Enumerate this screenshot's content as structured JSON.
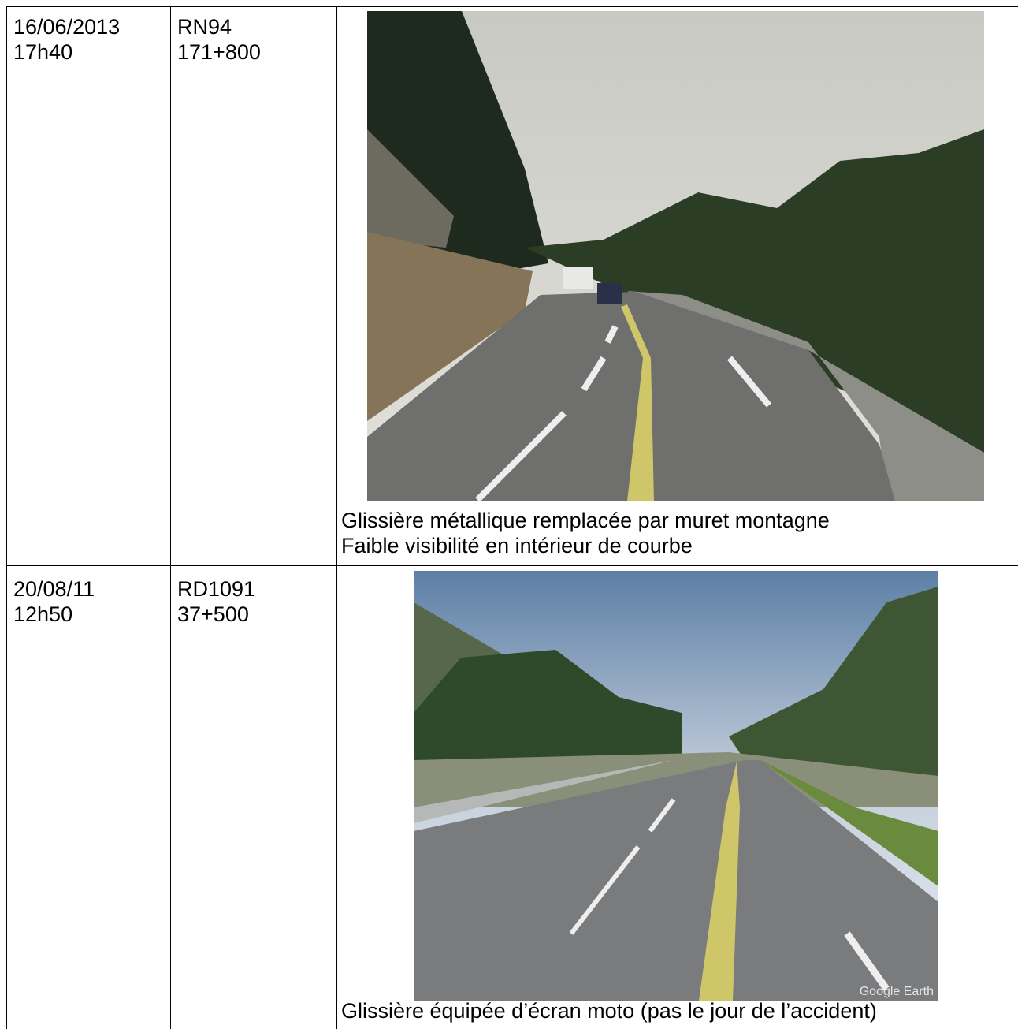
{
  "table": {
    "rows": [
      {
        "date": "16/06/2013",
        "time": "17h40",
        "road": "RN94",
        "pr": "171+800",
        "caption": [
          "Glissière métallique remplacée par muret montagne",
          "Faible visibilité en intérieur de courbe"
        ]
      },
      {
        "date": "20/08/11",
        "time": "12h50",
        "road": "RD1091",
        "pr": "37+500",
        "caption": [
          "Glissière équipée d’écran moto (pas le jour de l’accident)"
        ],
        "watermark": "Google Earth"
      }
    ]
  }
}
